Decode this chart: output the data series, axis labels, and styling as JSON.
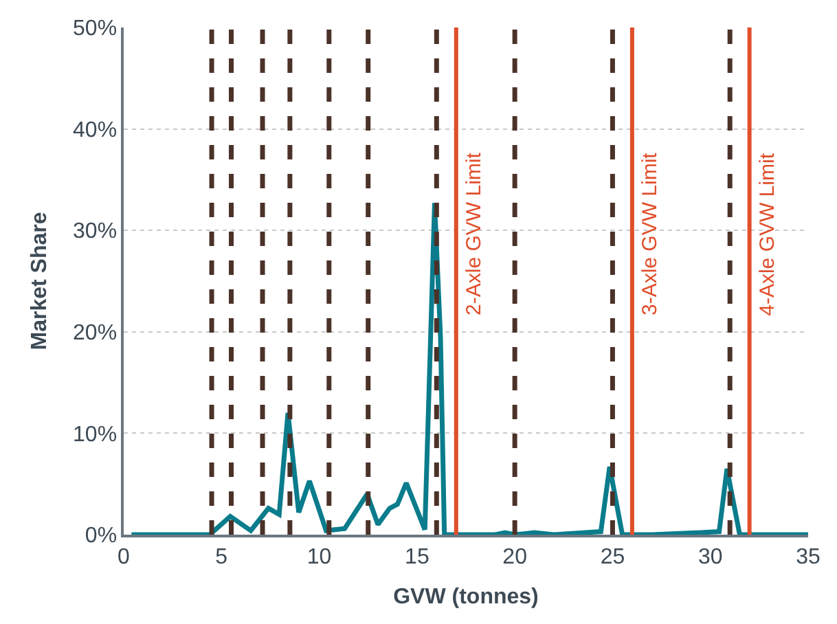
{
  "chart_data": {
    "type": "line",
    "xlabel": "GVW (tonnes)",
    "ylabel": "Market Share",
    "xlim": [
      0,
      35
    ],
    "xticks": [
      0,
      5,
      10,
      15,
      20,
      25,
      30,
      35
    ],
    "ylim": [
      0,
      50
    ],
    "yticks": [
      {
        "value": 0,
        "label": "0%"
      },
      {
        "value": 10,
        "label": "10%"
      },
      {
        "value": 20,
        "label": "20%"
      },
      {
        "value": 30,
        "label": "30%"
      },
      {
        "value": 40,
        "label": "40%"
      },
      {
        "value": 50,
        "label": "50%"
      }
    ],
    "grid": "y",
    "marker": "none",
    "line_style": "solid",
    "series": [
      {
        "color": "#0a7c8c",
        "x": [
          0.4,
          4.4,
          5.45,
          6.5,
          7.4,
          7.95,
          8.4,
          8.95,
          9.5,
          10.35,
          11.3,
          12.45,
          13.0,
          13.6,
          14.0,
          14.45,
          15.4,
          15.9,
          16.2,
          16.4,
          17.2,
          19.0,
          19.5,
          20.0,
          21.0,
          22.0,
          24.4,
          24.85,
          25.5,
          27.0,
          29.5,
          30.45,
          30.85,
          31.5,
          35.0
        ],
        "values": [
          0,
          0,
          1.8,
          0.4,
          2.6,
          2.0,
          12.0,
          2.2,
          5.3,
          0.4,
          0.6,
          4.0,
          1.0,
          2.6,
          3.0,
          5.1,
          0.5,
          32.7,
          19.5,
          0,
          0,
          0,
          0.2,
          0,
          0.2,
          0,
          0.3,
          6.7,
          0,
          0,
          0.2,
          0.3,
          6.5,
          0,
          0
        ]
      }
    ],
    "ref_lines": [
      {
        "axis": "x",
        "value": 4.5,
        "color": "#4b3229",
        "line_style": "dashed"
      },
      {
        "axis": "x",
        "value": 5.5,
        "color": "#4b3229",
        "line_style": "dashed"
      },
      {
        "axis": "x",
        "value": 7.1,
        "color": "#4b3229",
        "line_style": "dashed"
      },
      {
        "axis": "x",
        "value": 8.5,
        "color": "#4b3229",
        "line_style": "dashed"
      },
      {
        "axis": "x",
        "value": 10.5,
        "color": "#4b3229",
        "line_style": "dashed"
      },
      {
        "axis": "x",
        "value": 12.5,
        "color": "#4b3229",
        "line_style": "dashed"
      },
      {
        "axis": "x",
        "value": 16,
        "color": "#4b3229",
        "line_style": "dashed"
      },
      {
        "axis": "x",
        "value": 20,
        "color": "#4b3229",
        "line_style": "dashed"
      },
      {
        "axis": "x",
        "value": 25,
        "color": "#4b3229",
        "line_style": "dashed"
      },
      {
        "axis": "x",
        "value": 31,
        "color": "#4b3229",
        "line_style": "dashed"
      },
      {
        "axis": "x",
        "value": 17,
        "label": "2-Axle GVW Limit",
        "color": "#e04e2b",
        "line_style": "solid"
      },
      {
        "axis": "x",
        "value": 26,
        "label": "3-Axle GVW Limit",
        "color": "#e04e2b",
        "line_style": "solid"
      },
      {
        "axis": "x",
        "value": 32,
        "label": "4-Axle GVW Limit",
        "color": "#e04e2b",
        "line_style": "solid"
      }
    ]
  }
}
